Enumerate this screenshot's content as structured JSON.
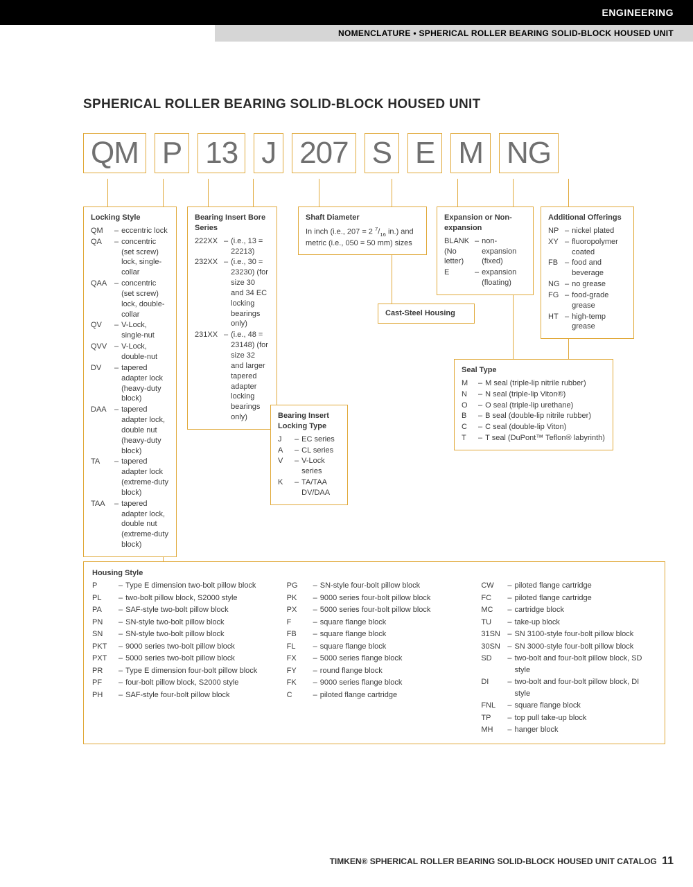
{
  "header": {
    "category": "ENGINEERING",
    "subheader": "NOMENCLATURE • SPHERICAL ROLLER BEARING SOLID-BLOCK HOUSED UNIT"
  },
  "page_title": "SPHERICAL ROLLER BEARING SOLID-BLOCK HOUSED UNIT",
  "code_parts": [
    "QM",
    "P",
    "13",
    "J",
    "207",
    "S",
    "E",
    "M",
    "NG"
  ],
  "locking_style": {
    "title": "Locking Style",
    "items": [
      {
        "c": "QM",
        "d": "eccentric lock"
      },
      {
        "c": "QA",
        "d": "concentric (set screw) lock, single-collar"
      },
      {
        "c": "QAA",
        "d": "concentric (set screw) lock, double-collar"
      },
      {
        "c": "QV",
        "d": "V-Lock, single-nut"
      },
      {
        "c": "QVV",
        "d": "V-Lock, double-nut"
      },
      {
        "c": "DV",
        "d": "tapered adapter lock (heavy-duty block)"
      },
      {
        "c": "DAA",
        "d": "tapered adapter lock, double nut (heavy-duty block)"
      },
      {
        "c": "TA",
        "d": "tapered adapter lock (extreme-duty block)"
      },
      {
        "c": "TAA",
        "d": "tapered adapter lock, double nut (extreme-duty block)"
      }
    ]
  },
  "bore_series": {
    "title": "Bearing Insert Bore Series",
    "items": [
      {
        "c": "222XX",
        "d": "(i.e., 13 = 22213)"
      },
      {
        "c": "232XX",
        "d": "(i.e., 30 = 23230) (for size 30 and 34 EC locking bearings only)"
      },
      {
        "c": "231XX",
        "d": "(i.e., 48 = 23148) (for size 32 and larger tapered adapter locking bearings only)"
      }
    ]
  },
  "locking_type": {
    "title": "Bearing Insert Locking Type",
    "items": [
      {
        "c": "J",
        "d": "EC series"
      },
      {
        "c": "A",
        "d": "CL series"
      },
      {
        "c": "V",
        "d": "V-Lock series"
      },
      {
        "c": "K",
        "d": "TA/TAA DV/DAA"
      }
    ]
  },
  "shaft_diameter": {
    "title": "Shaft Diameter",
    "text": "In inch (i.e., 207 = 2 7/16 in.) and metric (i.e., 050 = 50 mm) sizes"
  },
  "cast_steel": {
    "title": "Cast-Steel Housing"
  },
  "expansion": {
    "title": "Expansion or Non-expansion",
    "items": [
      {
        "c": "BLANK (No letter)",
        "d": "non-expansion (fixed)"
      },
      {
        "c": "E",
        "d": "expansion (floating)"
      }
    ]
  },
  "seal_type": {
    "title": "Seal Type",
    "items": [
      {
        "c": "M",
        "d": "M seal (triple-lip nitrile rubber)"
      },
      {
        "c": "N",
        "d": "N seal (triple-lip Viton®)"
      },
      {
        "c": "O",
        "d": "O seal (triple-lip urethane)"
      },
      {
        "c": "B",
        "d": "B seal (double-lip nitrile rubber)"
      },
      {
        "c": "C",
        "d": "C seal (double-lip Viton)"
      },
      {
        "c": "T",
        "d": "T seal (DuPont™ Teflon® labyrinth)"
      }
    ]
  },
  "additional": {
    "title": "Additional Offerings",
    "items": [
      {
        "c": "NP",
        "d": "nickel plated"
      },
      {
        "c": "XY",
        "d": "fluoropolymer coated"
      },
      {
        "c": "FB",
        "d": "food and beverage"
      },
      {
        "c": "NG",
        "d": "no grease"
      },
      {
        "c": "FG",
        "d": "food-grade grease"
      },
      {
        "c": "HT",
        "d": "high-temp grease"
      }
    ]
  },
  "housing": {
    "title": "Housing Style",
    "col1": [
      {
        "c": "P",
        "d": "Type E dimension two-bolt pillow block"
      },
      {
        "c": "PL",
        "d": "two-bolt pillow block, S2000 style"
      },
      {
        "c": "PA",
        "d": "SAF-style two-bolt pillow block"
      },
      {
        "c": "PN",
        "d": "SN-style two-bolt pillow block"
      },
      {
        "c": "SN",
        "d": "SN-style two-bolt pillow block"
      },
      {
        "c": "PKT",
        "d": "9000 series two-bolt pillow block"
      },
      {
        "c": "PXT",
        "d": "5000 series two-bolt pillow block"
      },
      {
        "c": "PR",
        "d": "Type E dimension four-bolt pillow block"
      },
      {
        "c": "PF",
        "d": "four-bolt pillow block, S2000 style"
      },
      {
        "c": "PH",
        "d": "SAF-style four-bolt pillow block"
      }
    ],
    "col2": [
      {
        "c": "PG",
        "d": "SN-style four-bolt pillow block"
      },
      {
        "c": "PK",
        "d": "9000 series four-bolt pillow block"
      },
      {
        "c": "PX",
        "d": "5000 series four-bolt pillow block"
      },
      {
        "c": "F",
        "d": "square flange block"
      },
      {
        "c": "FB",
        "d": "square flange block"
      },
      {
        "c": "FL",
        "d": "square flange block"
      },
      {
        "c": "FX",
        "d": "5000 series flange block"
      },
      {
        "c": "FY",
        "d": "round flange block"
      },
      {
        "c": "FK",
        "d": "9000 series flange block"
      },
      {
        "c": "C",
        "d": "piloted flange cartridge"
      }
    ],
    "col3": [
      {
        "c": "CW",
        "d": "piloted flange cartridge"
      },
      {
        "c": "FC",
        "d": "piloted flange cartridge"
      },
      {
        "c": "MC",
        "d": "cartridge block"
      },
      {
        "c": "TU",
        "d": "take-up block"
      },
      {
        "c": "31SN",
        "d": "SN 3100-style four-bolt pillow block"
      },
      {
        "c": "30SN",
        "d": "SN 3000-style four-bolt pillow block"
      },
      {
        "c": "SD",
        "d": "two-bolt and four-bolt pillow block, SD style"
      },
      {
        "c": "DI",
        "d": "two-bolt and four-bolt pillow block, DI style"
      },
      {
        "c": "FNL",
        "d": "square flange block"
      },
      {
        "c": "TP",
        "d": "top pull take-up block"
      },
      {
        "c": "MH",
        "d": "hanger block"
      }
    ]
  },
  "footer": {
    "text": "TIMKEN® SPHERICAL ROLLER BEARING SOLID-BLOCK HOUSED UNIT CATALOG",
    "page": "11"
  },
  "colors": {
    "border": "#e0a838",
    "code_text": "#707070",
    "black": "#000000",
    "gray": "#d6d6d6"
  }
}
